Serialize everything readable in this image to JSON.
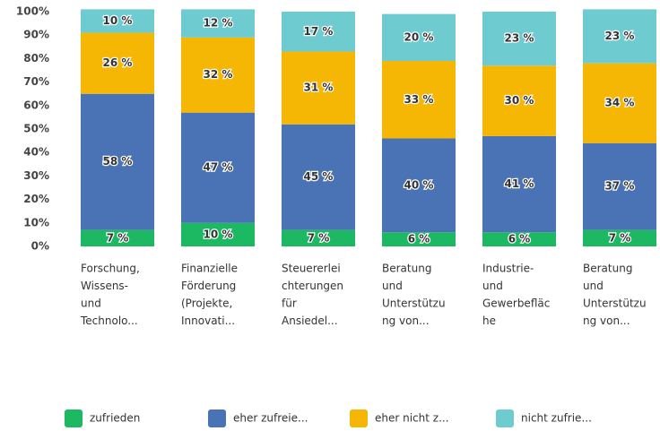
{
  "chart_data": {
    "type": "stacked_bar",
    "categories": [
      [
        "Forschung,",
        "Wissens-",
        "und",
        "Technolo..."
      ],
      [
        "Finanzielle",
        "Förderung",
        "(Projekte,",
        "Innovati..."
      ],
      [
        "Steuererlei",
        "chterungen",
        "für",
        "Ansiedel..."
      ],
      [
        "Beratung",
        "und",
        "Unterstützu",
        "ng von..."
      ],
      [
        "Industrie-",
        "und",
        "Gewerbefläc",
        "he"
      ],
      [
        "Beratung",
        "und",
        "Unterstützu",
        "ng von..."
      ]
    ],
    "series": [
      {
        "name": "zufrieden",
        "color": "#1cb862",
        "values": [
          7,
          10,
          7,
          6,
          6,
          7
        ],
        "value_labels": [
          "7 %",
          "10 %",
          "7 %",
          "6 %",
          "6 %",
          "7 %"
        ]
      },
      {
        "name": "eher zufreie...",
        "color": "#4a73b5",
        "values": [
          58,
          47,
          45,
          40,
          41,
          37
        ],
        "value_labels": [
          "58 %",
          "47 %",
          "45 %",
          "40 %",
          "41 %",
          "37 %"
        ]
      },
      {
        "name": "eher nicht z...",
        "color": "#f5b703",
        "values": [
          26,
          32,
          31,
          33,
          30,
          34
        ],
        "value_labels": [
          "26 %",
          "32 %",
          "31 %",
          "33 %",
          "30 %",
          "34 %"
        ]
      },
      {
        "name": "nicht zufrie...",
        "color": "#6ecbd0",
        "values": [
          10,
          12,
          17,
          20,
          23,
          23
        ],
        "value_labels": [
          "10 %",
          "12 %",
          "17 %",
          "20 %",
          "23 %",
          "23 %"
        ]
      }
    ],
    "ylim": [
      0,
      100
    ],
    "yticks": [
      {
        "value": 0,
        "label": "0%"
      },
      {
        "value": 10,
        "label": "10%"
      },
      {
        "value": 20,
        "label": "20%"
      },
      {
        "value": 30,
        "label": "30%"
      },
      {
        "value": 40,
        "label": "40%"
      },
      {
        "value": 50,
        "label": "50%"
      },
      {
        "value": 60,
        "label": "60%"
      },
      {
        "value": 70,
        "label": "70%"
      },
      {
        "value": 80,
        "label": "80%"
      },
      {
        "value": 90,
        "label": "90%"
      },
      {
        "value": 100,
        "label": "100%"
      }
    ],
    "grid": false,
    "legend": "bottom"
  }
}
